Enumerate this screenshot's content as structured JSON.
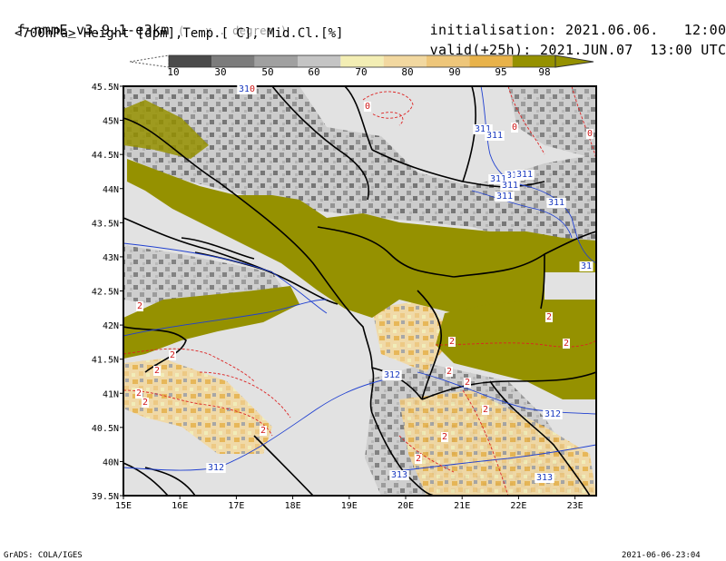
{
  "header": {
    "model": "f-nmmE_v3.9.1-e3km",
    "grid": "( . x . degree )",
    "init_label": "initialisation:",
    "init_value": "2021.06.06.   12:00 UTC",
    "field": "<700hPa> Height [dpm],Temp.[ C], Mid.Cl.[%]",
    "valid_label": "valid(+25h):",
    "valid_value": "2021.JUN.07  13:00 UTC"
  },
  "legend": {
    "labels": [
      "10",
      "30",
      "50",
      "60",
      "70",
      "80",
      "90",
      "95",
      "98"
    ],
    "colors": [
      "#4a4a4a",
      "#7c7c7c",
      "#a0a0a0",
      "#c4c4c4",
      "#f3eeb4",
      "#f2d8a0",
      "#eec67a",
      "#e8b24a",
      "#959100"
    ]
  },
  "map": {
    "lat_labels": [
      "45.5N",
      "45N",
      "44.5N",
      "44N",
      "43.5N",
      "43N",
      "42.5N",
      "42N",
      "41.5N",
      "41N",
      "40.5N",
      "40N",
      "39.5N"
    ],
    "lon_labels": [
      "15E",
      "16E",
      "17E",
      "18E",
      "19E",
      "20E",
      "21E",
      "22E",
      "23E"
    ],
    "height_labels": [
      {
        "text": "310"
      },
      {
        "text": "311"
      },
      {
        "text": "311"
      },
      {
        "text": "311"
      },
      {
        "text": "311"
      },
      {
        "text": "311"
      },
      {
        "text": "311"
      },
      {
        "text": "311"
      },
      {
        "text": "311"
      },
      {
        "text": "31"
      },
      {
        "text": "312"
      },
      {
        "text": "312"
      },
      {
        "text": "312"
      },
      {
        "text": "313"
      },
      {
        "text": "313"
      }
    ],
    "temp_labels": [
      {
        "text": "0"
      },
      {
        "text": "0"
      },
      {
        "text": "0"
      },
      {
        "text": "0"
      },
      {
        "text": "2"
      },
      {
        "text": "2"
      },
      {
        "text": "2"
      },
      {
        "text": "2"
      },
      {
        "text": "2"
      },
      {
        "text": "2"
      },
      {
        "text": "2"
      },
      {
        "text": "2"
      },
      {
        "text": "2"
      },
      {
        "text": "2"
      },
      {
        "text": "2"
      },
      {
        "text": "2"
      },
      {
        "text": "2"
      },
      {
        "text": "2"
      }
    ]
  },
  "footer": {
    "left": "GrADS: COLA/IGES",
    "right": "2021-06-06-23:04"
  }
}
